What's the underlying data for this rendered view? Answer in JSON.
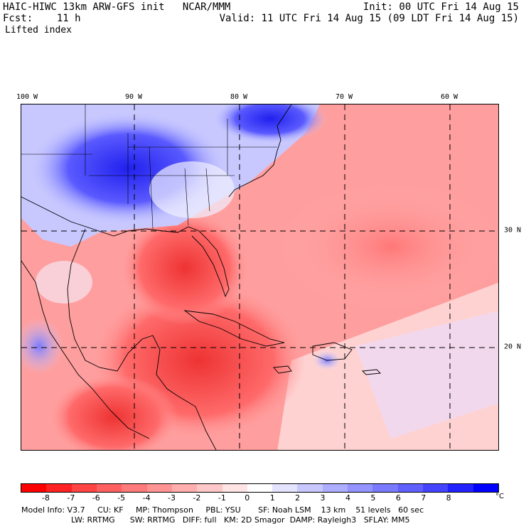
{
  "header": {
    "model_title": "HAIC-HIWC 13km ARW-GFS init",
    "org": "NCAR/MMM",
    "fcst_label": "Fcst:",
    "fcst_value": "11 h",
    "field_name": "Lifted index",
    "init": "Init: 00 UTC Fri 14 Aug 15",
    "valid": "Valid: 11 UTC Fri 14 Aug 15 (09 LDT Fri 14 Aug 15)"
  },
  "map": {
    "lon_labels": [
      "100 W",
      "90 W",
      "80 W",
      "70 W",
      "60 W"
    ],
    "lat_labels": [
      "30 N",
      "20 N"
    ],
    "colors": {
      "positive": "#0000ee",
      "negative": "#ee0000",
      "neutral": "#ffffff"
    }
  },
  "legend": {
    "ticks": [
      "-8",
      "-7",
      "-6",
      "-5",
      "-4",
      "-3",
      "-2",
      "-1",
      "0",
      "1",
      "2",
      "3",
      "4",
      "5",
      "6",
      "7",
      "8"
    ],
    "unit": "°C",
    "colors": [
      "#ff0000",
      "#ff2222",
      "#ff4444",
      "#ff6060",
      "#ff7a7a",
      "#ff9494",
      "#ffaeae",
      "#ffc8c8",
      "#ffe4e4",
      "#ffffff",
      "#e4e4ff",
      "#c8c8ff",
      "#aeaeff",
      "#9494ff",
      "#7a7aff",
      "#6060ff",
      "#4444ff",
      "#2222ff",
      "#0000ff"
    ]
  },
  "model_info": {
    "line1": [
      "Model Info: V3.7",
      "CU: KF",
      "MP: Thompson",
      "PBL: YSU",
      "SF: Noah LSM",
      "13 km",
      "51 levels",
      "60 sec"
    ],
    "line2": [
      "LW: RRTMG",
      "SW: RRTMG",
      "DIFF: full",
      "KM: 2D Smagor",
      "DAMP: Rayleigh3",
      "SFLAY: MM5"
    ]
  }
}
